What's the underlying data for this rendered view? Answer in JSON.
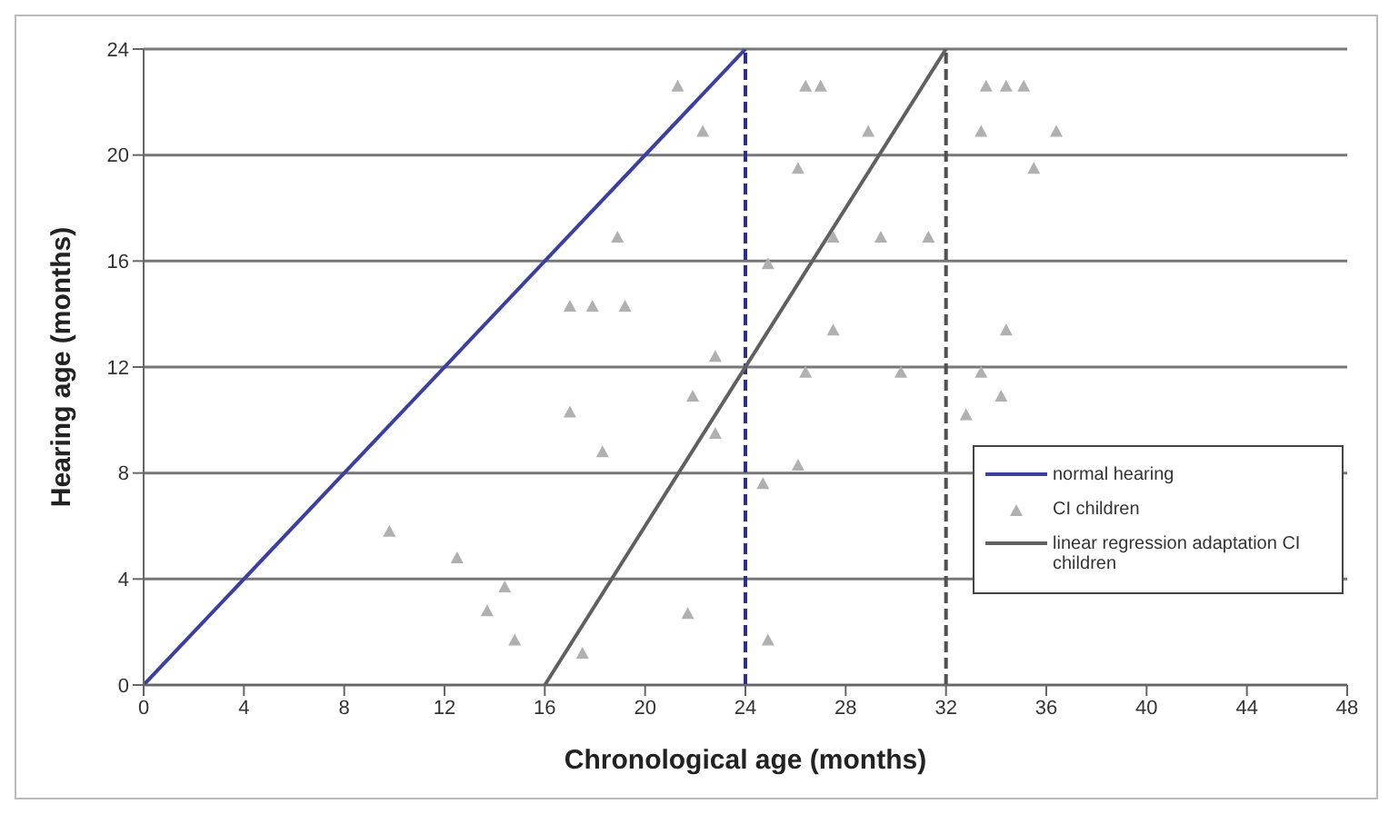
{
  "chart_data": {
    "type": "scatter",
    "xlabel": "Chronological age (months)",
    "ylabel": "Hearing age (months)",
    "xlim": [
      0,
      48
    ],
    "xticks": [
      0,
      4,
      8,
      12,
      16,
      20,
      24,
      28,
      32,
      36,
      40,
      44,
      48
    ],
    "ylim": [
      0,
      24
    ],
    "yticks": [
      0,
      4,
      8,
      12,
      16,
      20,
      24
    ],
    "grid": "y",
    "legend": "right",
    "series": [
      {
        "name": "normal hearing",
        "type": "line",
        "color": "#3a3fa0",
        "x": [
          0,
          24
        ],
        "values": [
          0,
          24
        ],
        "marker": "none",
        "line_style": "solid"
      },
      {
        "name": "CI children",
        "color": "#b0b0b0",
        "marker": "triangle",
        "x": [
          9.8,
          12.5,
          13.7,
          14.4,
          14.8,
          17.0,
          17.0,
          17.9,
          19.2,
          17.5,
          21.3,
          22.3,
          26.1,
          26.4,
          27.0,
          28.9,
          33.6,
          34.4,
          35.1,
          33.4,
          36.4,
          35.5,
          18.9,
          27.5,
          29.4,
          31.3,
          24.9,
          27.5,
          34.4,
          22.8,
          26.4,
          30.2,
          33.4,
          21.9,
          34.2,
          32.8,
          18.3,
          22.8,
          26.1,
          24.7,
          21.7,
          24.9
        ],
        "values": [
          5.8,
          4.8,
          2.8,
          3.7,
          1.7,
          14.3,
          10.3,
          14.3,
          14.3,
          1.2,
          22.6,
          20.9,
          19.5,
          22.6,
          22.6,
          20.9,
          22.6,
          22.6,
          22.6,
          20.9,
          20.9,
          19.5,
          16.9,
          16.9,
          16.9,
          16.9,
          15.9,
          13.4,
          13.4,
          12.4,
          11.8,
          11.8,
          11.8,
          10.9,
          10.9,
          10.2,
          8.8,
          9.5,
          8.3,
          7.6,
          2.7,
          1.7
        ]
      },
      {
        "name": "linear regression adaptation CI children",
        "type": "line",
        "color": "#606060",
        "x": [
          16,
          32
        ],
        "values": [
          0,
          24
        ],
        "marker": "none",
        "line_style": "solid"
      }
    ],
    "ref_lines": [
      {
        "axis": "x",
        "value": 24,
        "color": "#2a2f8a",
        "line_style": "dashed"
      },
      {
        "axis": "x",
        "value": 32,
        "color": "#505050",
        "line_style": "dashed"
      }
    ]
  }
}
